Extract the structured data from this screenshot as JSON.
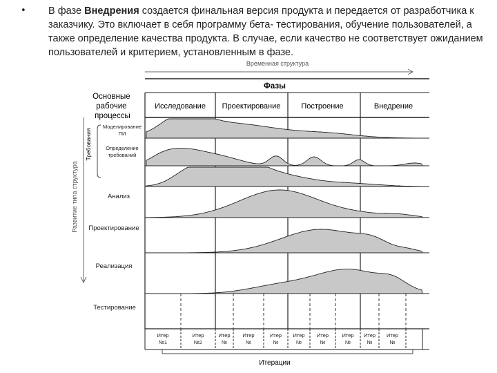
{
  "slide": {
    "bullet_symbol": "•",
    "text_before": "В фазе ",
    "text_bold": "Внедрения",
    "text_after": " создается финальная версия продукта и передается от разработчика к заказчику. Это включает в себя программу бета- тестирования, обучение пользователей, а также определение качества продукта. В случае, если качество не соответствует ожиданием пользователей и критерием, установленным в фазе."
  },
  "diagram": {
    "time_axis_label": "Временная структура",
    "phases_title": "Фазы",
    "core_processes_label": "Основные рабочие процессы",
    "requirements_label": "Требования",
    "content_axis_label": "Развитие типа структура",
    "iterations_label": "Итерации",
    "fill_color": "#c8c8c8",
    "phases": [
      "Исследование",
      "Проектирование",
      "Построение",
      "Внедрение"
    ],
    "workflows": [
      "Моделирование ПИ",
      "Определение требований",
      "Анализ",
      "Проектирование",
      "Реализация",
      "Тестирование"
    ],
    "iterations": [
      [
        "Итер",
        "№1"
      ],
      [
        "Итер",
        "№2"
      ],
      [
        "Итер",
        "№"
      ],
      [
        "Итер",
        "№"
      ],
      [
        "Итер",
        "№"
      ],
      [
        "Итер",
        "№"
      ],
      [
        "Итер",
        "№"
      ],
      [
        "Итер",
        "№"
      ],
      [
        "Итер",
        "№"
      ],
      [
        "Итер",
        "№"
      ]
    ]
  }
}
